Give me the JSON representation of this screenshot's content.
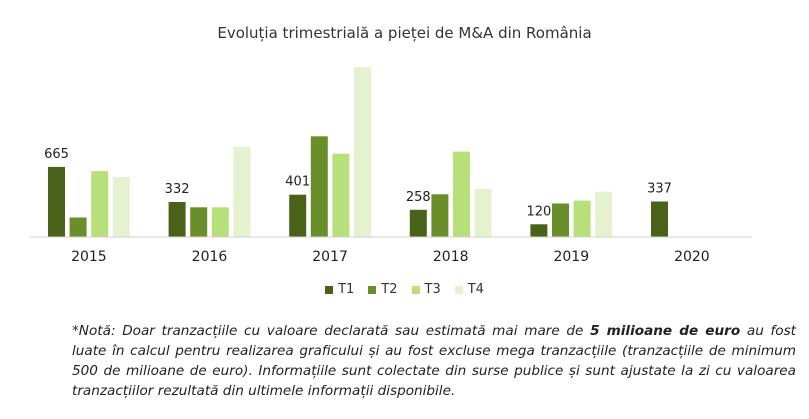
{
  "chart_data": {
    "type": "bar",
    "title": "Evoluția trimestrială a pieței de M&A din România",
    "categories": [
      "2015",
      "2016",
      "2017",
      "2018",
      "2019",
      "2020"
    ],
    "series": [
      {
        "name": "T1",
        "color": "#4a6218",
        "values": [
          665,
          332,
          401,
          258,
          120,
          337
        ]
      },
      {
        "name": "T2",
        "color": "#6a8f2a",
        "values": [
          185,
          282,
          955,
          405,
          318,
          null
        ]
      },
      {
        "name": "T3",
        "color": "#b8e07a",
        "values": [
          625,
          282,
          790,
          810,
          345,
          null
        ]
      },
      {
        "name": "T4",
        "color": "#e4f2cf",
        "values": [
          570,
          855,
          1610,
          455,
          430,
          null
        ]
      }
    ],
    "data_labels_series": "T1",
    "legend_position": "bottom",
    "grid": false,
    "ylim": [
      0,
      1650
    ]
  },
  "footnote": {
    "prefix": "*Notă: Doar tranzacțiile cu valoare declarată sau estimată mai mare de ",
    "bold": "5 milioane de euro",
    "suffix": " au fost luate în calcul pentru realizarea graficului și au fost excluse mega tranzacțiile (tranzacțiile de minimum 500 de milioane de euro). Informațiile sunt colectate din surse publice și sunt ajustate la zi cu valoarea tranzacțiilor rezultată din ultimele informații disponibile."
  }
}
